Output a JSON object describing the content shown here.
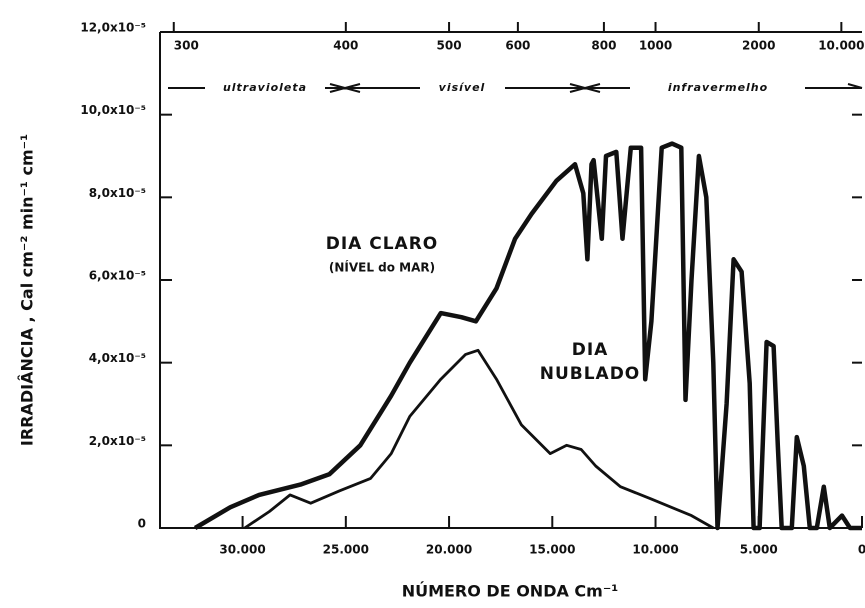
{
  "chart_data": {
    "type": "line",
    "xlabel": "NÚMERO DE ONDA Cm⁻¹",
    "ylabel": "IRRADIÂNCIA , Cal cm⁻² min⁻¹ cm⁻¹",
    "regions": [
      "ultravioleta",
      "visível",
      "infravermelho"
    ],
    "annotations": [
      "DIA   CLARO",
      "(NÍVEL do MAR)",
      "DIA",
      "NUBLADO"
    ],
    "xlim": [
      34000,
      0
    ],
    "xticks": [
      {
        "value": 30000,
        "label": "30.000"
      },
      {
        "value": 25000,
        "label": "25.000"
      },
      {
        "value": 20000,
        "label": "20.000"
      },
      {
        "value": 15000,
        "label": "15.000"
      },
      {
        "value": 10000,
        "label": "10.000"
      },
      {
        "value": 5000,
        "label": "5.000"
      },
      0
    ],
    "x2ticks": [
      300,
      400,
      500,
      600,
      800,
      1000,
      2000,
      {
        "value": 10000,
        "label": "10.000"
      }
    ],
    "ylim": [
      0,
      0.00012
    ],
    "yticks": [
      0,
      {
        "value": 2e-05,
        "label": "2,0x10⁻⁵"
      },
      {
        "value": 4e-05,
        "label": "4,0x10⁻⁵"
      },
      {
        "value": 6e-05,
        "label": "6,0x10⁻⁵"
      },
      {
        "value": 8e-05,
        "label": "8,0x10⁻⁵"
      },
      {
        "value": 0.0001,
        "label": "10,0x10⁻⁵"
      },
      {
        "value": 0.00012,
        "label": "12,0x10⁻⁵"
      }
    ],
    "series": [
      {
        "name": "DIA CLARO",
        "color": "#111111",
        "x": [
          32300,
          30600,
          29200,
          27200,
          25800,
          24300,
          22800,
          21900,
          20400,
          19400,
          18700,
          17700,
          16800,
          16000,
          14800,
          13900,
          13500,
          13300,
          13100,
          13000,
          12600,
          12400,
          11900,
          11600,
          11200,
          10700,
          10500,
          10200,
          9700,
          9200,
          8750,
          8550,
          8260,
          7900,
          7540,
          7200,
          7000,
          6560,
          6220,
          5830,
          5440,
          5250,
          4960,
          4620,
          4280,
          4080,
          3890,
          3400,
          3160,
          2820,
          2530,
          2190,
          1850,
          1560,
          970,
          580,
          0
        ],
        "values": [
          0,
          5e-06,
          8e-06,
          1.05e-05,
          1.3e-05,
          2e-05,
          3.2e-05,
          4e-05,
          5.2e-05,
          5.1e-05,
          5e-05,
          5.8e-05,
          7e-05,
          7.6e-05,
          8.4e-05,
          8.8e-05,
          8.1e-05,
          6.5e-05,
          8.8e-05,
          8.9e-05,
          7e-05,
          9e-05,
          9.1e-05,
          7e-05,
          9.2e-05,
          9.2e-05,
          3.6e-05,
          5e-05,
          9.2e-05,
          9.3e-05,
          9.2e-05,
          3.1e-05,
          6e-05,
          9e-05,
          8e-05,
          4e-05,
          0,
          3e-05,
          6.5e-05,
          6.2e-05,
          3.5e-05,
          0,
          0,
          4.5e-05,
          4.4e-05,
          2e-05,
          0,
          0,
          2.2e-05,
          1.5e-05,
          0,
          0,
          1e-05,
          0,
          3e-06,
          0,
          0
        ]
      },
      {
        "name": "DIA NUBLADO",
        "color": "#111111",
        "x": [
          29900,
          28700,
          27700,
          26700,
          25300,
          23800,
          22800,
          21900,
          20400,
          19200,
          18600,
          17700,
          16500,
          15100,
          14300,
          13600,
          12900,
          11700,
          10200,
          8260,
          7200
        ],
        "values": [
          0,
          4e-06,
          8e-06,
          6e-06,
          9e-06,
          1.2e-05,
          1.8e-05,
          2.7e-05,
          3.6e-05,
          4.2e-05,
          4.3e-05,
          3.6e-05,
          2.5e-05,
          1.8e-05,
          2e-05,
          1.9e-05,
          1.5e-05,
          1e-05,
          7e-06,
          3e-06,
          0
        ]
      }
    ]
  }
}
